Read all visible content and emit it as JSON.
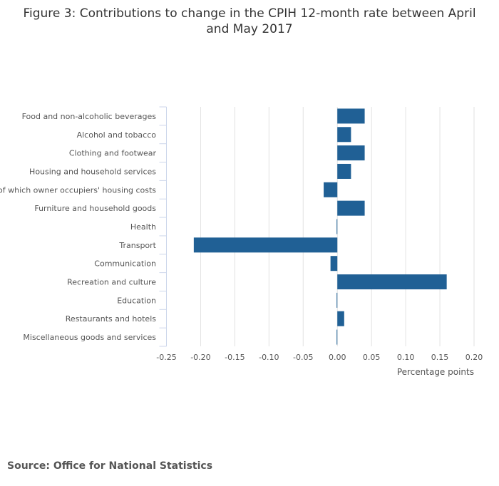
{
  "chart_data": {
    "type": "bar",
    "orientation": "horizontal",
    "title": "Figure 3: Contributions to change in the CPIH 12-month rate between April and May 2017",
    "xlabel": "Percentage points",
    "ylabel": "",
    "xlim": [
      -0.25,
      0.2
    ],
    "xticks": [
      "-0.25",
      "-0.20",
      "-0.15",
      "-0.10",
      "-0.05",
      "0.00",
      "0.05",
      "0.10",
      "0.15",
      "0.20"
    ],
    "grid": true,
    "categories": [
      "Food and non-alcoholic beverages",
      "Alcohol and tobacco",
      "Clothing and footwear",
      "Housing and household services",
      "of which owner occupiers' housing costs",
      "Furniture and household goods",
      "Health",
      "Transport",
      "Communication",
      "Recreation and culture",
      "Education",
      "Restaurants and hotels",
      "Miscellaneous goods and services"
    ],
    "values": [
      0.04,
      0.02,
      0.04,
      0.02,
      -0.02,
      0.04,
      0.0,
      -0.21,
      -0.01,
      0.16,
      0.0,
      0.01,
      0.0
    ],
    "bar_color": "#206095"
  },
  "source": "Source: Office for National Statistics"
}
